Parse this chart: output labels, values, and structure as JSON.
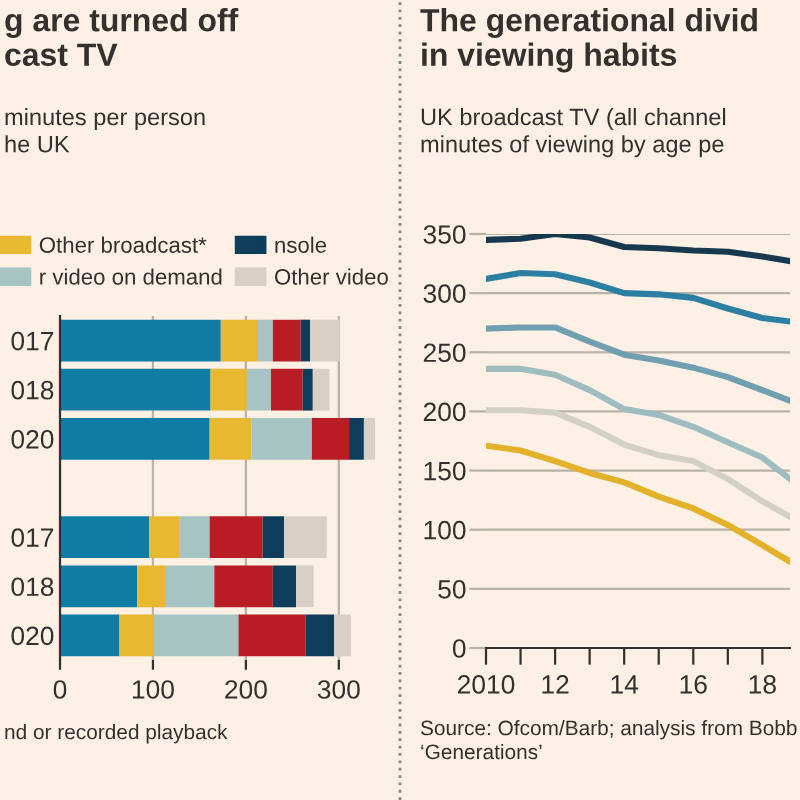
{
  "chart_data": [
    {
      "type": "bar",
      "orientation": "horizontal",
      "stacked": true,
      "title": "g are turned off\ncast TV",
      "subtitle": "minutes per person\nhe UK",
      "categories": [
        "017",
        "018",
        "020",
        null,
        "017",
        "018",
        "020"
      ],
      "series": [
        {
          "color": "#0f7ca6",
          "values": [
            173,
            162,
            161,
            null,
            96,
            83,
            64
          ]
        },
        {
          "name": "Other broadcast*",
          "color": "#e8b930",
          "values": [
            40,
            39,
            45,
            null,
            33,
            31,
            37
          ]
        },
        {
          "name": "r video on demand",
          "color": "#a6c4c4",
          "values": [
            16,
            26,
            65,
            null,
            32,
            52,
            91
          ]
        },
        {
          "color": "#b81c25",
          "values": [
            30,
            34,
            40,
            null,
            57,
            63,
            72
          ]
        },
        {
          "name": "nsole",
          "color": "#0e3e5a",
          "values": [
            10,
            11,
            16,
            null,
            23,
            25,
            31
          ]
        },
        {
          "name": "Other video",
          "color": "#d9cfc4",
          "values": [
            32,
            18,
            12,
            null,
            46,
            19,
            18
          ]
        }
      ],
      "xlim": [
        0,
        340
      ],
      "xticks": [
        0,
        100,
        200,
        300
      ],
      "grid": "x",
      "legend": "top",
      "annotations": [
        "nd or recorded playback"
      ]
    },
    {
      "type": "line",
      "title": "The generational divid\nin viewing habits",
      "subtitle": "UK broadcast TV (all channel\nminutes of viewing by age pe",
      "x": [
        2010,
        2011,
        2012,
        2013,
        2014,
        2015,
        2016,
        2017,
        2018,
        2018.8
      ],
      "series": [
        {
          "color": "#17394f",
          "values": [
            345,
            346,
            350,
            347,
            339,
            338,
            336,
            335,
            331,
            327
          ]
        },
        {
          "color": "#2a7fa3",
          "values": [
            312,
            317,
            316,
            309,
            300,
            299,
            296,
            287,
            279,
            276
          ]
        },
        {
          "color": "#6f9fb0",
          "values": [
            270,
            271,
            271,
            259,
            248,
            243,
            237,
            229,
            218,
            209
          ]
        },
        {
          "color": "#9dbdc0",
          "values": [
            236,
            236,
            231,
            218,
            202,
            197,
            187,
            174,
            161,
            143
          ]
        },
        {
          "color": "#d3d0c4",
          "values": [
            201,
            201,
            199,
            187,
            172,
            163,
            158,
            143,
            124,
            111
          ]
        },
        {
          "color": "#e3b12a",
          "values": [
            171,
            167,
            158,
            148,
            140,
            128,
            118,
            104,
            87,
            73
          ]
        }
      ],
      "xlim": [
        2010,
        2018.8
      ],
      "ylim": [
        0,
        350
      ],
      "yticks": [
        0,
        50,
        100,
        150,
        200,
        250,
        300,
        350
      ],
      "xticks": [
        {
          "value": 2010,
          "label": "2010"
        },
        {
          "value": 2011,
          "label": null
        },
        {
          "value": 2012,
          "label": "12"
        },
        {
          "value": 2013,
          "label": null
        },
        {
          "value": 2014,
          "label": "14"
        },
        {
          "value": 2015,
          "label": null
        },
        {
          "value": 2016,
          "label": "16"
        },
        {
          "value": 2017,
          "label": null
        },
        {
          "value": 2018,
          "label": "18"
        }
      ],
      "grid": "y",
      "marker": "none",
      "line_style": "solid",
      "annotations": [
        "Source: Ofcom/Barb; analysis from Bobb\n‘Generations’"
      ]
    }
  ]
}
